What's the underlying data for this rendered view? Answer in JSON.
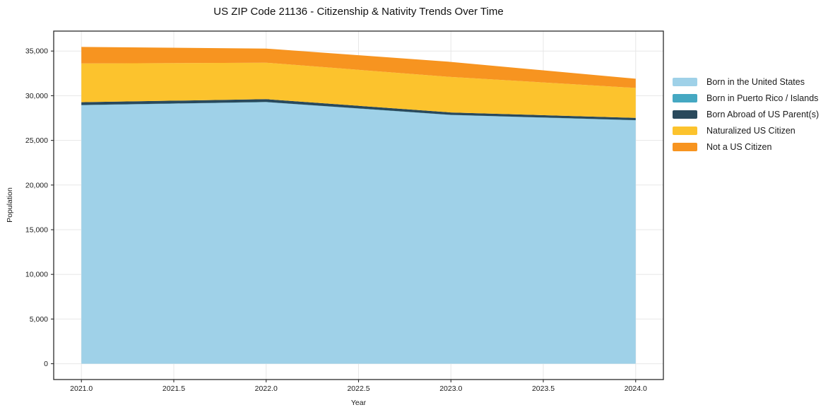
{
  "chart_data": {
    "type": "area",
    "stacked": true,
    "title": "US ZIP Code 21136 - Citizenship & Nativity Trends Over Time",
    "xlabel": "Year",
    "ylabel": "Population",
    "x": [
      2021,
      2022,
      2023,
      2024
    ],
    "series": [
      {
        "name": "Born in the United States",
        "color": "#9fd1e8",
        "values": [
          28930,
          29270,
          27830,
          27240
        ]
      },
      {
        "name": "Born in Puerto Rico / Islands",
        "color": "#45a8c2",
        "values": [
          25,
          25,
          25,
          25
        ]
      },
      {
        "name": "Born Abroad of US Parent(s)",
        "color": "#29495c",
        "values": [
          315,
          315,
          275,
          255
        ]
      },
      {
        "name": "Naturalized US Citizen",
        "color": "#fcc32d",
        "values": [
          4340,
          4090,
          3970,
          3350
        ]
      },
      {
        "name": "Not a US Citizen",
        "color": "#f79420",
        "values": [
          1850,
          1580,
          1680,
          1030
        ]
      }
    ],
    "x_ticks": [
      {
        "value": 2021.0,
        "label": "2021.0"
      },
      {
        "value": 2021.5,
        "label": "2021.5"
      },
      {
        "value": 2022.0,
        "label": "2022.0"
      },
      {
        "value": 2022.5,
        "label": "2022.5"
      },
      {
        "value": 2023.0,
        "label": "2023.0"
      },
      {
        "value": 2023.5,
        "label": "2023.5"
      },
      {
        "value": 2024.0,
        "label": "2024.0"
      }
    ],
    "y_ticks": [
      {
        "value": 0,
        "label": "0"
      },
      {
        "value": 5000,
        "label": "5,000"
      },
      {
        "value": 10000,
        "label": "10,000"
      },
      {
        "value": 15000,
        "label": "15,000"
      },
      {
        "value": 20000,
        "label": "20,000"
      },
      {
        "value": 25000,
        "label": "25,000"
      },
      {
        "value": 30000,
        "label": "30,000"
      },
      {
        "value": 35000,
        "label": "35,000"
      }
    ],
    "xlim": [
      2020.85,
      2024.15
    ],
    "ylim": [
      -1773,
      37233
    ],
    "grid": true,
    "legend_position": "right-outside",
    "colors": {
      "grid": "#e7e7e7",
      "frame": "#2b2b2b",
      "text": "#1a1a1a",
      "background": "#ffffff"
    }
  }
}
